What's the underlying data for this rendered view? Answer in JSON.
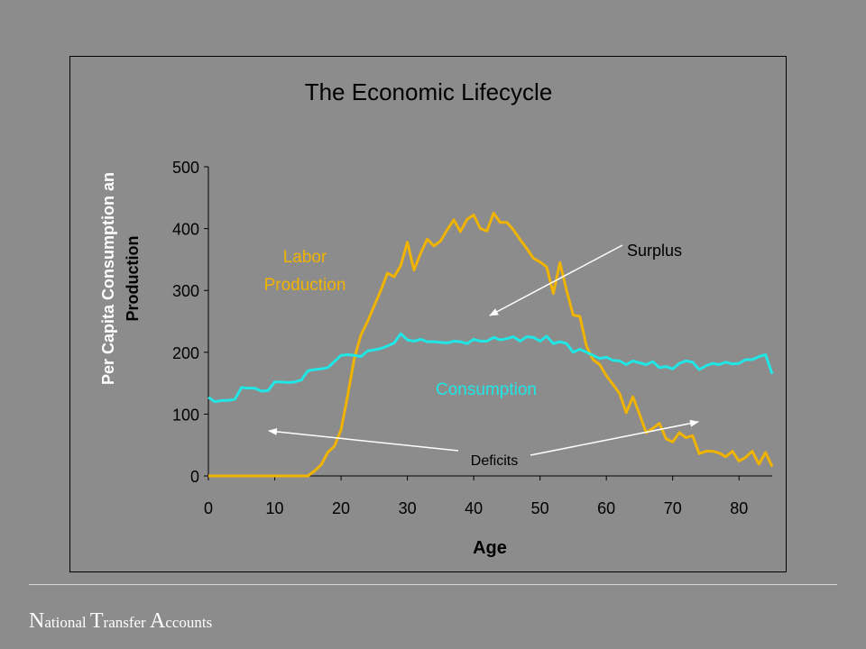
{
  "chart_data": {
    "type": "line",
    "title": "The Economic Lifecycle",
    "xlabel": "Age",
    "ylabel": [
      "Per Capita Consumption an",
      "Production"
    ],
    "xlim": [
      0,
      85
    ],
    "ylim": [
      0,
      500
    ],
    "xticks": [
      "0",
      "10",
      "20",
      "30",
      "40",
      "50",
      "60",
      "70",
      "80"
    ],
    "yticks": [
      "0",
      "100",
      "200",
      "300",
      "400",
      "500"
    ],
    "grid": false,
    "x": [
      0,
      1,
      2,
      3,
      4,
      5,
      6,
      7,
      8,
      9,
      10,
      11,
      12,
      13,
      14,
      15,
      16,
      17,
      18,
      19,
      20,
      21,
      22,
      23,
      24,
      25,
      26,
      27,
      28,
      29,
      30,
      31,
      32,
      33,
      34,
      35,
      36,
      37,
      38,
      39,
      40,
      41,
      42,
      43,
      44,
      45,
      46,
      47,
      48,
      49,
      50,
      51,
      52,
      53,
      54,
      55,
      56,
      57,
      58,
      59,
      60,
      61,
      62,
      63,
      64,
      65,
      66,
      67,
      68,
      69,
      70,
      71,
      72,
      73,
      74,
      75,
      76,
      77,
      78,
      79,
      80,
      81,
      82,
      83,
      84,
      85
    ],
    "series": [
      {
        "name": "Labor Production",
        "color": "#f0b400",
        "values": [
          0,
          0,
          0,
          0,
          0,
          0,
          0,
          0,
          0,
          0,
          0,
          0,
          0,
          0,
          0,
          0,
          8,
          18,
          38,
          48,
          75,
          130,
          190,
          228,
          250,
          275,
          300,
          328,
          322,
          340,
          378,
          333,
          360,
          383,
          372,
          380,
          398,
          414,
          395,
          415,
          422,
          400,
          396,
          425,
          410,
          410,
          398,
          382,
          368,
          352,
          346,
          338,
          295,
          345,
          300,
          260,
          258,
          210,
          188,
          180,
          162,
          148,
          133,
          102,
          128,
          100,
          70,
          77,
          85,
          60,
          55,
          70,
          62,
          65,
          36,
          40,
          40,
          37,
          31,
          40,
          24,
          30,
          40,
          19,
          38,
          15
        ]
      },
      {
        "name": "Consumption",
        "color": "#21e6e6",
        "values": [
          127,
          120,
          122,
          122,
          124,
          143,
          142,
          142,
          137,
          138,
          152,
          152,
          151,
          152,
          155,
          170,
          172,
          173,
          175,
          185,
          195,
          196,
          195,
          193,
          202,
          204,
          206,
          210,
          215,
          230,
          220,
          218,
          221,
          217,
          217,
          216,
          215,
          218,
          217,
          214,
          221,
          218,
          218,
          224,
          220,
          222,
          225,
          218,
          225,
          224,
          218,
          226,
          214,
          217,
          214,
          200,
          205,
          200,
          195,
          190,
          192,
          187,
          186,
          180,
          186,
          183,
          180,
          185,
          175,
          177,
          173,
          182,
          186,
          184,
          172,
          178,
          182,
          180,
          184,
          181,
          182,
          188,
          188,
          193,
          196,
          165
        ]
      }
    ],
    "annotations": [
      {
        "text": "Labor",
        "color": "#f0b400"
      },
      {
        "text": "Production",
        "color": "#f0b400"
      },
      {
        "text": "Consumption",
        "color": "#21e6e6"
      },
      {
        "text": "Surplus",
        "color": "#ffffff"
      },
      {
        "text": "Deficits",
        "color": "#ffffff"
      }
    ]
  },
  "footer": {
    "n": "N",
    "ational": "ational ",
    "t": "T",
    "ransfer": "ransfer ",
    "a": "A",
    "ccounts": "ccounts"
  }
}
